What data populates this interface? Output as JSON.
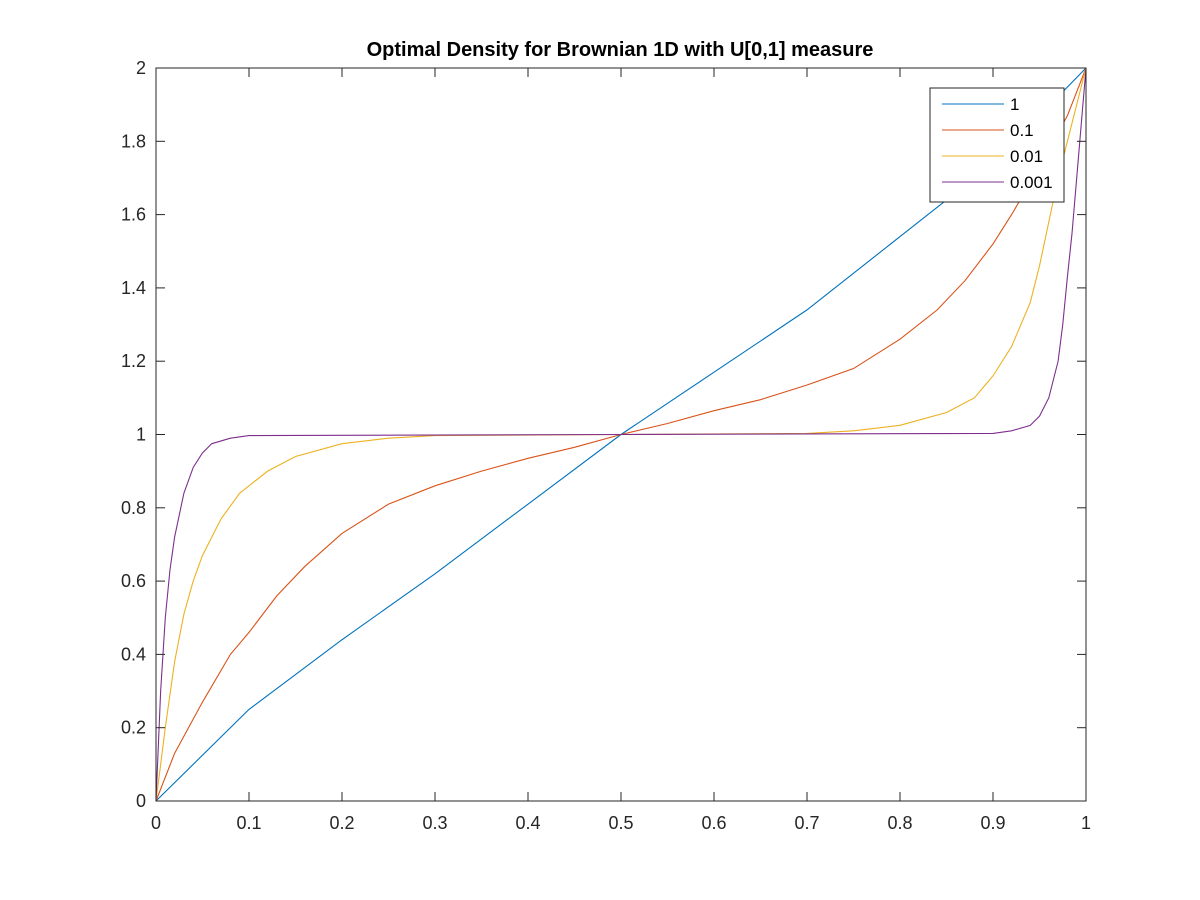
{
  "chart_data": {
    "type": "line",
    "title": "Optimal Density for Brownian 1D with U[0,1] measure",
    "xlabel": "",
    "ylabel": "",
    "xlim": [
      0,
      1
    ],
    "ylim": [
      0,
      2
    ],
    "xticks": [
      "0",
      "0.1",
      "0.2",
      "0.3",
      "0.4",
      "0.5",
      "0.6",
      "0.7",
      "0.8",
      "0.9",
      "1"
    ],
    "yticks": [
      "0",
      "0.2",
      "0.4",
      "0.6",
      "0.8",
      "1",
      "1.2",
      "1.4",
      "1.6",
      "1.8",
      "2"
    ],
    "grid": false,
    "legend_position": "top-right",
    "series": [
      {
        "name": "1",
        "color": "#0072BD",
        "x": [
          0,
          0.1,
          0.2,
          0.3,
          0.4,
          0.5,
          0.6,
          0.7,
          0.8,
          0.9,
          1
        ],
        "y": [
          0,
          0.25,
          0.44,
          0.62,
          0.81,
          1.0,
          1.17,
          1.34,
          1.54,
          1.74,
          2.0
        ]
      },
      {
        "name": "0.1",
        "color": "#D95319",
        "x": [
          0,
          0.02,
          0.05,
          0.08,
          0.1,
          0.13,
          0.16,
          0.2,
          0.25,
          0.3,
          0.35,
          0.4,
          0.45,
          0.5,
          0.55,
          0.6,
          0.65,
          0.7,
          0.75,
          0.8,
          0.84,
          0.87,
          0.9,
          0.92,
          0.95,
          0.98,
          1
        ],
        "y": [
          0,
          0.13,
          0.27,
          0.4,
          0.46,
          0.56,
          0.64,
          0.73,
          0.81,
          0.86,
          0.9,
          0.935,
          0.965,
          1.0,
          1.03,
          1.065,
          1.095,
          1.135,
          1.18,
          1.26,
          1.34,
          1.42,
          1.52,
          1.6,
          1.73,
          1.87,
          2.0
        ]
      },
      {
        "name": "0.01",
        "color": "#EDB120",
        "x": [
          0,
          0.01,
          0.02,
          0.03,
          0.04,
          0.05,
          0.07,
          0.09,
          0.12,
          0.15,
          0.2,
          0.25,
          0.3,
          0.5,
          0.7,
          0.75,
          0.8,
          0.85,
          0.88,
          0.9,
          0.92,
          0.94,
          0.95,
          0.96,
          0.97,
          0.98,
          0.99,
          1
        ],
        "y": [
          0,
          0.2,
          0.38,
          0.51,
          0.6,
          0.67,
          0.77,
          0.84,
          0.9,
          0.94,
          0.975,
          0.99,
          0.997,
          1.0,
          1.003,
          1.01,
          1.025,
          1.06,
          1.1,
          1.16,
          1.24,
          1.36,
          1.46,
          1.58,
          1.7,
          1.8,
          1.9,
          2.0
        ]
      },
      {
        "name": "0.001",
        "color": "#7E2F8E",
        "x": [
          0,
          0.005,
          0.01,
          0.015,
          0.02,
          0.03,
          0.04,
          0.05,
          0.06,
          0.08,
          0.1,
          0.5,
          0.9,
          0.92,
          0.94,
          0.95,
          0.96,
          0.97,
          0.975,
          0.98,
          0.985,
          0.99,
          0.995,
          1
        ],
        "y": [
          0,
          0.3,
          0.5,
          0.63,
          0.72,
          0.84,
          0.91,
          0.95,
          0.975,
          0.99,
          0.997,
          1.0,
          1.003,
          1.01,
          1.025,
          1.05,
          1.1,
          1.2,
          1.3,
          1.43,
          1.55,
          1.7,
          1.85,
          2.0
        ]
      }
    ]
  }
}
